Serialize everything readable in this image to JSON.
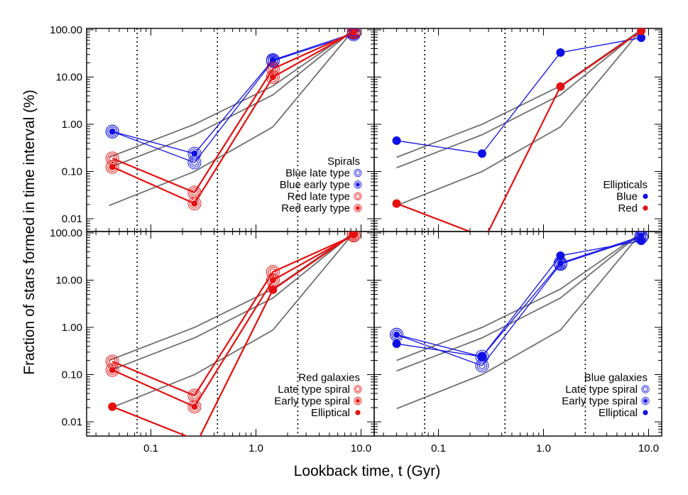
{
  "chart_data": {
    "type": "line",
    "xlabel": "Lookback time, t (Gyr)",
    "ylabel": "Fraction of stars formed in time interval (%)",
    "x_scale": "log",
    "y_scale": "log",
    "xlim": [
      0.02,
      12
    ],
    "ylim": [
      0.005,
      120
    ],
    "x_ticks": [
      0.1,
      1.0,
      10.0
    ],
    "x_tick_labels": [
      "0.1",
      "1.0",
      "10.0"
    ],
    "y_ticks": [
      0.01,
      0.1,
      1,
      10,
      100
    ],
    "y_tick_labels": [
      "0.01",
      "0.10",
      "1.00",
      "10.00",
      "100.00"
    ],
    "vertical_dotted_lines": [
      0.074,
      0.43,
      2.5
    ],
    "reference_curves": [
      {
        "x": [
          0.04,
          0.26,
          1.45,
          8.5
        ],
        "y": [
          0.2,
          1.0,
          6.5,
          100
        ]
      },
      {
        "x": [
          0.04,
          0.26,
          1.45,
          8.5
        ],
        "y": [
          0.12,
          0.6,
          4.2,
          100
        ]
      },
      {
        "x": [
          0.04,
          0.26,
          1.45,
          8.5
        ],
        "y": [
          0.019,
          0.1,
          0.88,
          100
        ]
      }
    ],
    "colors": {
      "blue": "#1010e6",
      "red": "#e61010",
      "gray": "#707070"
    },
    "panels": [
      {
        "name": "spirals",
        "legend_title": "Spirals",
        "legend": [
          {
            "label": "Blue late type",
            "color": "#1010e6",
            "marker": "rings"
          },
          {
            "label": "Blue early type",
            "color": "#1010e6",
            "marker": "ringdot"
          },
          {
            "label": "Red late type",
            "color": "#e61010",
            "marker": "rings"
          },
          {
            "label": "Red early type",
            "color": "#e61010",
            "marker": "ringdot"
          }
        ],
        "series": [
          {
            "label": "Blue late type",
            "color": "#1010e6",
            "marker": "rings",
            "width": 1.3,
            "x": [
              0.043,
              0.26,
              1.45,
              8.5
            ],
            "y": [
              0.7,
              0.155,
              22,
              80
            ]
          },
          {
            "label": "Blue early type",
            "color": "#1010e6",
            "marker": "ringdot",
            "width": 1.3,
            "x": [
              0.043,
              0.26,
              1.45,
              8.5
            ],
            "y": [
              0.7,
              0.24,
              23,
              85
            ]
          },
          {
            "label": "Red late type",
            "color": "#e61010",
            "marker": "rings",
            "width": 2.2,
            "x": [
              0.043,
              0.26,
              1.45,
              8.5
            ],
            "y": [
              0.19,
              0.036,
              15,
              88
            ]
          },
          {
            "label": "Red early type",
            "color": "#e61010",
            "marker": "ringdot",
            "width": 2.2,
            "x": [
              0.043,
              0.26,
              1.45,
              8.5
            ],
            "y": [
              0.125,
              0.021,
              10,
              90
            ]
          }
        ]
      },
      {
        "name": "ellipticals",
        "legend_title": "Ellipticals",
        "legend": [
          {
            "label": "Blue",
            "color": "#1010e6",
            "marker": "dot"
          },
          {
            "label": "Red",
            "color": "#e61010",
            "marker": "dot"
          }
        ],
        "series": [
          {
            "label": "Blue",
            "color": "#1010e6",
            "marker": "dot",
            "width": 1.3,
            "x": [
              0.04,
              0.26,
              1.45,
              8.5
            ],
            "y": [
              0.45,
              0.24,
              33,
              68
            ]
          },
          {
            "label": "Red",
            "color": "#e61010",
            "marker": "dot",
            "width": 2.2,
            "x": [
              0.04,
              0.28,
              1.45,
              8.5
            ],
            "y": [
              0.021,
              0.004,
              6.3,
              95
            ]
          }
        ]
      },
      {
        "name": "red-galaxies",
        "legend_title": "Red galaxies",
        "legend": [
          {
            "label": "Late type spiral",
            "color": "#e61010",
            "marker": "rings"
          },
          {
            "label": "Early type spiral",
            "color": "#e61010",
            "marker": "ringdot"
          },
          {
            "label": "Elliptical",
            "color": "#e61010",
            "marker": "dot"
          }
        ],
        "series": [
          {
            "label": "Late type spiral",
            "color": "#e61010",
            "marker": "rings",
            "width": 2.2,
            "x": [
              0.043,
              0.26,
              1.45,
              8.5
            ],
            "y": [
              0.19,
              0.036,
              15,
              88
            ]
          },
          {
            "label": "Early type spiral",
            "color": "#e61010",
            "marker": "ringdot",
            "width": 2.2,
            "x": [
              0.043,
              0.26,
              1.45,
              8.5
            ],
            "y": [
              0.125,
              0.021,
              10,
              90
            ]
          },
          {
            "label": "Elliptical",
            "color": "#e61010",
            "marker": "dot",
            "width": 2.2,
            "x": [
              0.043,
              0.28,
              1.45,
              8.5
            ],
            "y": [
              0.021,
              0.004,
              6.3,
              95
            ]
          }
        ]
      },
      {
        "name": "blue-galaxies",
        "legend_title": "Blue galaxies",
        "legend": [
          {
            "label": "Late type spiral",
            "color": "#1010e6",
            "marker": "rings"
          },
          {
            "label": "Early type spiral",
            "color": "#1010e6",
            "marker": "ringdot"
          },
          {
            "label": "Elliptical",
            "color": "#1010e6",
            "marker": "dot"
          }
        ],
        "series": [
          {
            "label": "Late type spiral",
            "color": "#1010e6",
            "marker": "rings",
            "width": 1.3,
            "x": [
              0.04,
              0.26,
              1.45,
              8.5
            ],
            "y": [
              0.7,
              0.155,
              22,
              80
            ]
          },
          {
            "label": "Early type spiral",
            "color": "#1010e6",
            "marker": "ringdot",
            "width": 1.3,
            "x": [
              0.04,
              0.26,
              1.45,
              8.5
            ],
            "y": [
              0.7,
              0.24,
              23,
              85
            ]
          },
          {
            "label": "Elliptical",
            "color": "#1010e6",
            "marker": "dot",
            "width": 1.3,
            "x": [
              0.04,
              0.26,
              1.45,
              8.5
            ],
            "y": [
              0.45,
              0.24,
              33,
              68
            ]
          }
        ]
      }
    ]
  }
}
